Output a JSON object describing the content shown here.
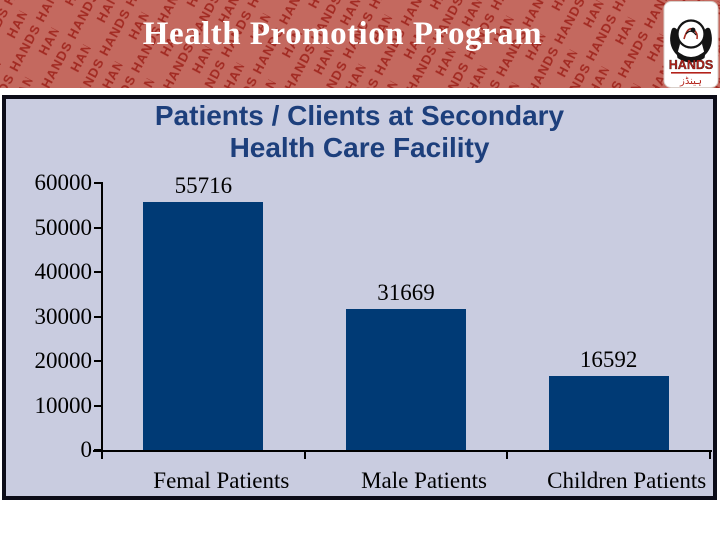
{
  "slide_title": "Health Promotion Program",
  "logo": {
    "name": "HANDS",
    "pattern_word": "HANDS",
    "urdu_caption": "ہینڈز"
  },
  "colors": {
    "header_bg": "#c4695f",
    "header_pattern": "#9e231b",
    "slide_title_text": "#ffffff",
    "panel_bg": "#c9cce0",
    "panel_border": "#0c0c18",
    "chart_title_text": "#1d3f7c",
    "bar": "#003a75",
    "axis": "#000000"
  },
  "chart_data": {
    "type": "bar",
    "title": "Patients / Clients at Secondary Health Care Facility",
    "title_lines": [
      "Patients / Clients at Secondary",
      "Health Care Facility"
    ],
    "categories": [
      "Femal Patients",
      "Male Patients",
      "Children Patients"
    ],
    "values": [
      55716,
      31669,
      16592
    ],
    "value_labels": [
      "55716",
      "31669",
      "16592"
    ],
    "xlabel": "",
    "ylabel": "",
    "ylim": [
      0,
      60000
    ],
    "yticks": [
      0,
      10000,
      20000,
      30000,
      40000,
      50000,
      60000
    ],
    "grid": false,
    "legend": "none",
    "bar_color": "#003a75"
  }
}
